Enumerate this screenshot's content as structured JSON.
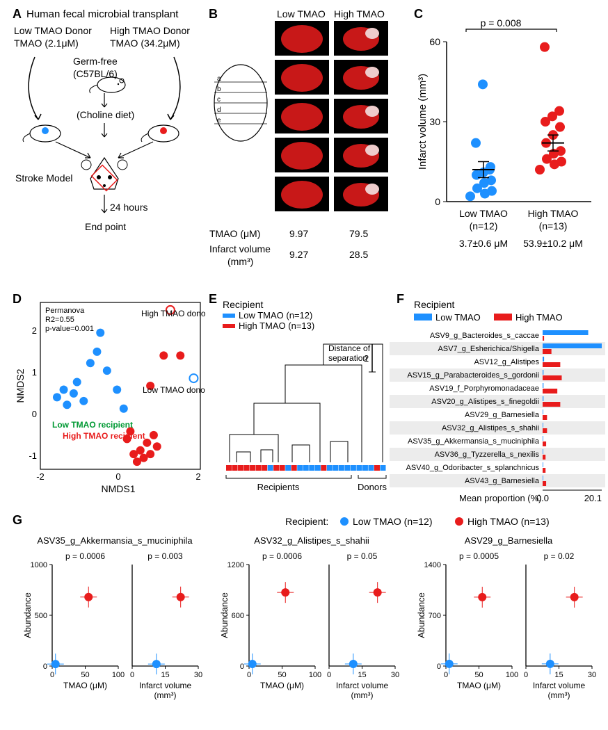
{
  "colors": {
    "low": "#1e90ff",
    "high": "#e81c1c",
    "green": "#009933",
    "black": "#000000"
  },
  "panelA": {
    "title": "Human fecal microbial transplant",
    "low_donor_l1": "Low TMAO Donor",
    "low_donor_l2": "TMAO (2.1μM)",
    "high_donor_l1": "High TMAO Donor",
    "high_donor_l2": "TMAO (34.2μM)",
    "germ_free_l1": "Germ-free",
    "germ_free_l2": "(C57BL/6)",
    "choline": "(Choline diet)",
    "stroke": "Stroke Model",
    "hours": "24 hours",
    "endpoint": "End point"
  },
  "panelB": {
    "low_hdr": "Low TMAO",
    "high_hdr": "High TMAO",
    "tmao_lbl": "TMAO (μM)",
    "inf_lbl_l1": "Infarct volume",
    "inf_lbl_l2": "(mm³)",
    "low_tmao": "9.97",
    "high_tmao": "79.5",
    "low_inf": "9.27",
    "high_inf": "28.5",
    "slices": [
      "a",
      "b",
      "c",
      "d",
      "e"
    ]
  },
  "panelC": {
    "pvalue": "p = 0.008",
    "ylabel": "Infarct volume (mm³)",
    "low_lbl_l1": "Low TMAO",
    "low_lbl_l2": "(n=12)",
    "low_lbl_l3": "3.7±0.6 μM",
    "high_lbl_l1": "High TMAO",
    "high_lbl_l2": "(n=13)",
    "high_lbl_l3": "53.9±10.2 μM",
    "ylim": [
      0,
      60
    ],
    "ytick_step": 30,
    "low_points": [
      2,
      3,
      4,
      5,
      7,
      8,
      10,
      11,
      13,
      22,
      44,
      12
    ],
    "high_points": [
      12,
      14,
      15,
      16,
      18,
      19,
      22,
      25,
      28,
      30,
      32,
      34,
      58
    ],
    "low_mean": 12,
    "low_sem": 3,
    "high_mean": 22,
    "high_sem": 3
  },
  "panelD": {
    "stats_l1": "Permanova",
    "stats_l2": "R2=0.55",
    "stats_l3": "p-value=0.001",
    "high_donor": "High TMAO donor",
    "low_donor": "Low TMAO donor",
    "low_recip": "Low TMAO recipient",
    "high_recip": "High TMAO recipient",
    "xlabel": "NMDS1",
    "ylabel": "NMDS2",
    "xlim": [
      -2,
      2
    ],
    "ylim": [
      -1,
      2
    ],
    "low_points": [
      [
        -1.8,
        0.1
      ],
      [
        -1.6,
        0.3
      ],
      [
        -1.5,
        -0.1
      ],
      [
        -1.3,
        0.2
      ],
      [
        -1.2,
        0.5
      ],
      [
        -1.0,
        0.0
      ],
      [
        -0.8,
        1.0
      ],
      [
        -0.6,
        1.3
      ],
      [
        -0.5,
        1.8
      ],
      [
        -0.3,
        0.8
      ],
      [
        0.0,
        0.3
      ],
      [
        0.2,
        -0.2
      ]
    ],
    "high_points": [
      [
        0.3,
        -1.0
      ],
      [
        0.5,
        -1.4
      ],
      [
        0.7,
        -1.3
      ],
      [
        0.8,
        -1.5
      ],
      [
        1.0,
        -1.4
      ],
      [
        1.2,
        -1.2
      ],
      [
        0.4,
        -0.8
      ],
      [
        0.6,
        -1.6
      ],
      [
        0.9,
        -1.1
      ],
      [
        1.1,
        -0.9
      ],
      [
        1.9,
        1.2
      ],
      [
        1.4,
        1.2
      ],
      [
        1.0,
        0.4
      ]
    ],
    "low_donor_pt": [
      2.3,
      0.6
    ],
    "high_donor_pt": [
      1.6,
      2.4
    ]
  },
  "panelE": {
    "title": "Recipient",
    "low_leg": "Low TMAO (n=12)",
    "high_leg": "High TMAO (n=13)",
    "dist_lbl": "Distance of\nseparation",
    "recipients": "Recipients",
    "donors": "Donors",
    "scale": "2"
  },
  "panelF": {
    "title": "Recipient",
    "low_leg": "Low TMAO",
    "high_leg": "High TMAO",
    "xlabel": "Mean proportion (%)",
    "xmin": "0.0",
    "xmax": "20.1",
    "taxa": [
      {
        "name": "ASV9_g_Bacteroides_s_caccae",
        "low": 15.5,
        "high": 0.5
      },
      {
        "name": "ASV7_g_Esherichica/Shigella",
        "low": 20.1,
        "high": 3.0
      },
      {
        "name": "ASV12_g_Alistipes",
        "low": 0.5,
        "high": 6.0
      },
      {
        "name": "ASV15_g_Parabacteroides_s_gordonii",
        "low": 0.3,
        "high": 6.5
      },
      {
        "name": "ASV19_f_Porphyromonadaceae",
        "low": 0.3,
        "high": 5.0
      },
      {
        "name": "ASV20_g_Alistipes_s_finegoldii",
        "low": 0.3,
        "high": 6.0
      },
      {
        "name": "ASV29_g_Barnesiella",
        "low": 0.2,
        "high": 1.5
      },
      {
        "name": "ASV32_g_Alistipes_s_shahii",
        "low": 0.2,
        "high": 1.5
      },
      {
        "name": "ASV35_g_Akkermansia_s_muciniphila",
        "low": 0.2,
        "high": 1.2
      },
      {
        "name": "ASV36_g_Tyzzerella_s_nexilis",
        "low": 0.2,
        "high": 1.0
      },
      {
        "name": "ASV40_g_Odoribacter_s_splanchnicus",
        "low": 0.2,
        "high": 1.0
      },
      {
        "name": "ASV43_g_Barnesiella",
        "low": 0.2,
        "high": 1.2
      }
    ]
  },
  "panelG": {
    "legend_lbl": "Recipient:",
    "low_leg": "Low TMAO  (n=12)",
    "high_leg": "High TMAO  (n=13)",
    "ylabel": "Abundance",
    "tmao_xlabel": "TMAO (μM)",
    "inf_xlabel_l1": "Infarct volume",
    "inf_xlabel_l2": "(mm³)",
    "plots": [
      {
        "taxon": "ASV35_g_Akkermansia_s_muciniphila",
        "p1": "p = 0.0006",
        "p2": "p = 0.003",
        "ymax": 1000,
        "ytick": 500,
        "low_x1": 5,
        "low_y": 20,
        "high_x1": 55,
        "high_y": 680,
        "low_x2": 11,
        "high_x2": 22,
        "xmax1": 100,
        "xmax2": 30
      },
      {
        "taxon": "ASV32_g_Alistipes_s_shahii",
        "p1": "p = 0.0006",
        "p2": "p = 0.05",
        "ymax": 1200,
        "ytick": 600,
        "low_x1": 5,
        "low_y": 25,
        "high_x1": 55,
        "high_y": 870,
        "low_x2": 11,
        "high_x2": 22,
        "xmax1": 100,
        "xmax2": 30
      },
      {
        "taxon": "ASV29_g_Barnesiella",
        "p1": "p = 0.0005",
        "p2": "p = 0.02",
        "ymax": 1400,
        "ytick": 700,
        "low_x1": 5,
        "low_y": 30,
        "high_x1": 55,
        "high_y": 950,
        "low_x2": 11,
        "high_x2": 22,
        "xmax1": 100,
        "xmax2": 30
      }
    ]
  }
}
